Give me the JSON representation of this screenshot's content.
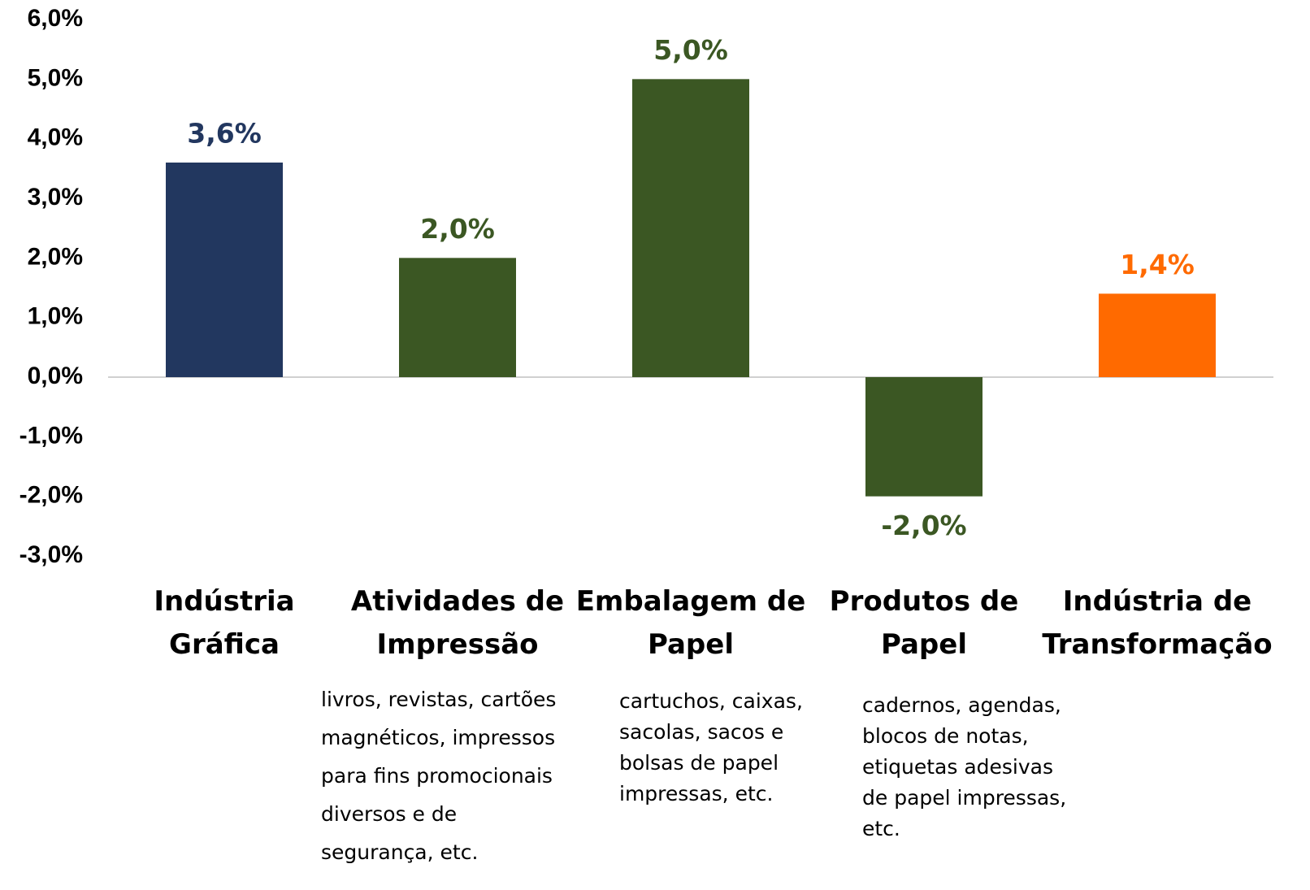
{
  "chart_data": {
    "type": "bar",
    "categories": [
      "Indústria\nGráfica",
      "Atividades de\nImpressão",
      "Embalagem de\nPapel",
      "Produtos de\nPapel",
      "Indústria de\nTransformação"
    ],
    "values": [
      3.6,
      2.0,
      5.0,
      -2.0,
      1.4
    ],
    "value_labels": [
      "3,6%",
      "2,0%",
      "5,0%",
      "-2,0%",
      "1,4%"
    ],
    "colors": [
      "#22375f",
      "#3b5723",
      "#3b5723",
      "#3b5723",
      "#ff6a00"
    ],
    "notes": [
      null,
      "livros, revistas, cartões\nmagnéticos, impressos\npara fins promocionais\ndiversos e de\nsegurança, etc.",
      "cartuchos, caixas,\nsacolas, sacos e\nbolsas de papel\nimpressas, etc.",
      "cadernos, agendas,\nblocos de notas,\netiquetas adesivas\nde papel impressas,\netc.",
      null
    ],
    "ylim": [
      -3,
      6
    ],
    "yticks": [
      {
        "value": -3,
        "label": "-3,0%"
      },
      {
        "value": -2,
        "label": "-2,0%"
      },
      {
        "value": -1,
        "label": "-1,0%"
      },
      {
        "value": 0,
        "label": "0,0%"
      },
      {
        "value": 1,
        "label": "1,0%"
      },
      {
        "value": 2,
        "label": "2,0%"
      },
      {
        "value": 3,
        "label": "3,0%"
      },
      {
        "value": 4,
        "label": "4,0%"
      },
      {
        "value": 5,
        "label": "5,0%"
      },
      {
        "value": 6,
        "label": "6,0%"
      }
    ],
    "grid": false
  }
}
